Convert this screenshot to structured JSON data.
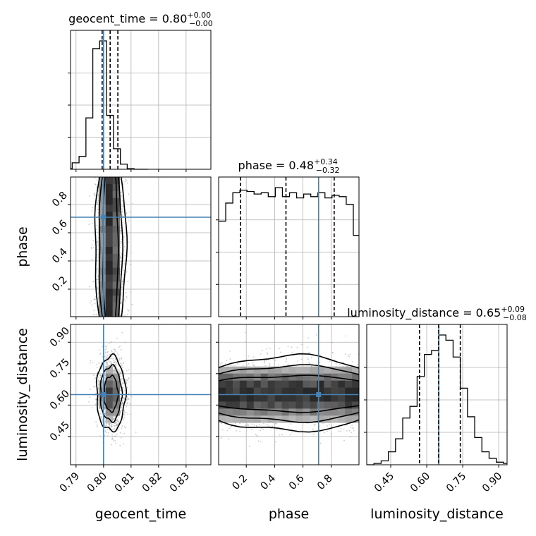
{
  "figure": {
    "truths": {
      "geocent_time": 0.8,
      "phase": 0.71,
      "luminosity_distance": 0.65
    },
    "colors": {
      "truth": "#4682b4",
      "hist": "#000000",
      "grid": "#b0b0b0",
      "scatter": "#9a9a9a"
    }
  },
  "chart_data": [
    {
      "type": "histogram",
      "name": "geocent_time",
      "title": {
        "main": "geocent_time = 0.80",
        "sup": "+0.00",
        "sub": "−0.00"
      },
      "xlim": [
        0.788,
        0.839
      ],
      "bin_edges": [
        0.7861,
        0.7886,
        0.7911,
        0.7936,
        0.7961,
        0.7986,
        0.8011,
        0.8036,
        0.8061,
        0.8086,
        0.8111,
        0.8136,
        0.8161
      ],
      "counts": [
        0.005,
        0.05,
        0.1,
        0.4,
        0.94,
        1.0,
        0.42,
        0.16,
        0.04,
        0.005,
        0,
        0
      ],
      "quantiles": [
        0.7995,
        0.8024,
        0.8052
      ],
      "truth": 0.8
    },
    {
      "type": "histogram",
      "name": "phase",
      "title": {
        "main": "phase = 0.48",
        "sup": "+0.34",
        "sub": "−0.32"
      },
      "xlim": [
        0.005,
        0.995
      ],
      "bin_edges": [
        0.005,
        0.055,
        0.105,
        0.155,
        0.205,
        0.255,
        0.305,
        0.355,
        0.405,
        0.455,
        0.505,
        0.555,
        0.605,
        0.655,
        0.705,
        0.755,
        0.805,
        0.855,
        0.905,
        0.955,
        0.995
      ],
      "counts": [
        0.74,
        0.88,
        0.96,
        0.98,
        0.97,
        0.95,
        0.96,
        0.93,
        1.0,
        0.93,
        0.96,
        0.92,
        0.95,
        0.93,
        0.96,
        0.92,
        0.94,
        0.93,
        0.87,
        0.63
      ],
      "quantiles": [
        0.16,
        0.48,
        0.82
      ],
      "truth": 0.71
    },
    {
      "type": "histogram",
      "name": "luminosity_distance",
      "title": {
        "main": "luminosity_distance = 0.65",
        "sup": "+0.09",
        "sub": "−0.08"
      },
      "xlim": [
        0.35,
        0.935
      ],
      "bin_edges": [
        0.35,
        0.38,
        0.41,
        0.44,
        0.47,
        0.5,
        0.53,
        0.56,
        0.59,
        0.62,
        0.65,
        0.68,
        0.71,
        0.74,
        0.77,
        0.8,
        0.83,
        0.86,
        0.89,
        0.92,
        0.935
      ],
      "counts": [
        0,
        0.01,
        0.03,
        0.1,
        0.2,
        0.36,
        0.45,
        0.68,
        0.85,
        0.88,
        1.0,
        0.96,
        0.83,
        0.59,
        0.37,
        0.21,
        0.1,
        0.05,
        0.02,
        0.01
      ],
      "quantiles": [
        0.57,
        0.65,
        0.74
      ],
      "truth": 0.65
    },
    {
      "type": "scatter-density",
      "name": "phase-vs-geocent_time",
      "x_param": "geocent_time",
      "y_param": "phase",
      "xlim": [
        0.788,
        0.839
      ],
      "ylim": [
        0.005,
        0.995
      ],
      "center": [
        0.8025,
        0.5
      ],
      "spread": [
        0.0027,
        0.3
      ],
      "contour_levels": [
        0.0043,
        0.0062,
        0.0083
      ],
      "truth": [
        0.8,
        0.71
      ]
    },
    {
      "type": "scatter-density",
      "name": "luminosity_distance-vs-geocent_time",
      "x_param": "geocent_time",
      "y_param": "luminosity_distance",
      "xlim": [
        0.788,
        0.839
      ],
      "ylim": [
        0.315,
        0.985
      ],
      "center": [
        0.8027,
        0.655
      ],
      "spread": [
        0.0025,
        0.085
      ],
      "contour_levels": [
        1.0,
        1.5,
        2.0
      ],
      "truth": [
        0.8,
        0.65
      ]
    },
    {
      "type": "scatter-density",
      "name": "luminosity_distance-vs-phase",
      "x_param": "phase",
      "y_param": "luminosity_distance",
      "xlim": [
        0.005,
        0.995
      ],
      "ylim": [
        0.315,
        0.985
      ],
      "center": [
        0.5,
        0.655
      ],
      "spread": [
        0.3,
        0.085
      ],
      "contour_levels": [
        0.055,
        0.095,
        0.135
      ],
      "truth": [
        0.71,
        0.65
      ]
    }
  ],
  "axes": {
    "geocent_time": {
      "label": "geocent_time",
      "ticks": [
        "0.79",
        "0.80",
        "0.81",
        "0.82",
        "0.83"
      ],
      "tick_values": [
        0.79,
        0.8,
        0.81,
        0.82,
        0.83
      ]
    },
    "phase": {
      "label": "phase",
      "ticks": [
        "0.2",
        "0.4",
        "0.6",
        "0.8"
      ],
      "tick_values": [
        0.2,
        0.4,
        0.6,
        0.8
      ]
    },
    "luminosity_distance": {
      "label": "luminosity_distance",
      "ticks": [
        "0.45",
        "0.60",
        "0.75",
        "0.90"
      ],
      "tick_values": [
        0.45,
        0.6,
        0.75,
        0.9
      ]
    }
  }
}
